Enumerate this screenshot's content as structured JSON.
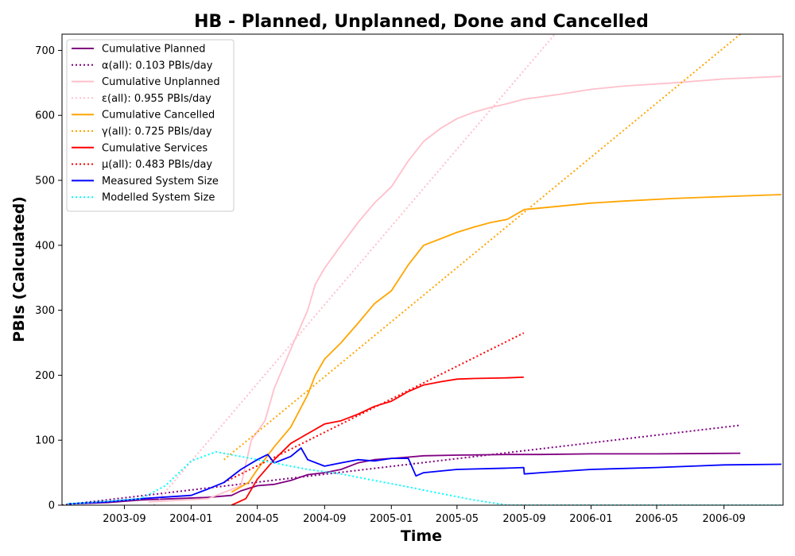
{
  "chart_data": {
    "type": "line",
    "title": "HB - Planned, Unplanned, Done  and Cancelled",
    "xlabel": "Time",
    "ylabel": "PBIs (Calculated)",
    "xlim": [
      "2003-05-10",
      "2006-12-18"
    ],
    "ylim": [
      0,
      725
    ],
    "x_ticks": [
      "2003-09",
      "2004-01",
      "2004-05",
      "2004-09",
      "2005-01",
      "2005-05",
      "2005-09",
      "2006-01",
      "2006-05",
      "2006-09"
    ],
    "y_ticks": [
      0,
      100,
      200,
      300,
      400,
      500,
      600,
      700
    ],
    "grid": false,
    "legend_position": "top-left",
    "series": [
      {
        "name": "Cumulative Planned",
        "color": "#800080",
        "style": "solid",
        "points": [
          [
            "2003-05-20",
            2
          ],
          [
            "2003-08-01",
            4
          ],
          [
            "2003-10-01",
            8
          ],
          [
            "2003-12-01",
            10
          ],
          [
            "2004-02-01",
            12
          ],
          [
            "2004-03-15",
            15
          ],
          [
            "2004-04-01",
            22
          ],
          [
            "2004-05-01",
            30
          ],
          [
            "2004-06-01",
            32
          ],
          [
            "2004-07-01",
            38
          ],
          [
            "2004-08-01",
            47
          ],
          [
            "2004-09-01",
            50
          ],
          [
            "2004-10-01",
            55
          ],
          [
            "2004-11-01",
            65
          ],
          [
            "2004-12-01",
            70
          ],
          [
            "2005-01-01",
            72
          ],
          [
            "2005-02-01",
            74
          ],
          [
            "2005-03-01",
            76
          ],
          [
            "2005-05-01",
            77
          ],
          [
            "2005-08-01",
            78
          ],
          [
            "2005-10-01",
            78
          ],
          [
            "2006-01-01",
            79
          ],
          [
            "2006-05-01",
            79
          ],
          [
            "2006-10-01",
            80
          ]
        ]
      },
      {
        "name": "α(all): 0.103 PBIs/day",
        "color": "#800080",
        "style": "dotted",
        "points": [
          [
            "2003-05-10",
            0
          ],
          [
            "2006-10-01",
            123
          ]
        ]
      },
      {
        "name": "Cumulative Unplanned",
        "color": "#ffc0cb",
        "style": "solid",
        "points": [
          [
            "2003-10-15",
            5
          ],
          [
            "2004-02-01",
            10
          ],
          [
            "2004-04-01",
            30
          ],
          [
            "2004-04-20",
            100
          ],
          [
            "2004-05-15",
            130
          ],
          [
            "2004-06-01",
            180
          ],
          [
            "2004-07-01",
            240
          ],
          [
            "2004-08-01",
            300
          ],
          [
            "2004-08-15",
            340
          ],
          [
            "2004-09-01",
            365
          ],
          [
            "2004-10-01",
            400
          ],
          [
            "2004-11-01",
            435
          ],
          [
            "2004-12-01",
            465
          ],
          [
            "2005-01-01",
            490
          ],
          [
            "2005-02-01",
            530
          ],
          [
            "2005-03-01",
            560
          ],
          [
            "2005-04-01",
            580
          ],
          [
            "2005-05-01",
            595
          ],
          [
            "2005-06-01",
            605
          ],
          [
            "2005-07-01",
            612
          ],
          [
            "2005-08-01",
            618
          ],
          [
            "2005-09-01",
            625
          ],
          [
            "2005-11-01",
            632
          ],
          [
            "2006-01-01",
            640
          ],
          [
            "2006-03-01",
            645
          ],
          [
            "2006-06-01",
            650
          ],
          [
            "2006-09-01",
            656
          ],
          [
            "2006-12-15",
            660
          ]
        ]
      },
      {
        "name": "ε(all): 0.955 PBIs/day",
        "color": "#ffc0cb",
        "style": "dotted",
        "points": [
          [
            "2003-10-25",
            0
          ],
          [
            "2005-10-27",
            725
          ]
        ]
      },
      {
        "name": "Cumulative Cancelled",
        "color": "#ffa500",
        "style": "solid",
        "points": [
          [
            "2004-03-15",
            20
          ],
          [
            "2004-04-15",
            35
          ],
          [
            "2004-05-01",
            55
          ],
          [
            "2004-06-01",
            90
          ],
          [
            "2004-07-01",
            120
          ],
          [
            "2004-08-01",
            170
          ],
          [
            "2004-08-15",
            200
          ],
          [
            "2004-09-01",
            225
          ],
          [
            "2004-10-01",
            250
          ],
          [
            "2004-11-01",
            280
          ],
          [
            "2004-12-01",
            310
          ],
          [
            "2005-01-01",
            330
          ],
          [
            "2005-02-01",
            370
          ],
          [
            "2005-03-01",
            400
          ],
          [
            "2005-04-01",
            410
          ],
          [
            "2005-05-01",
            420
          ],
          [
            "2005-06-01",
            428
          ],
          [
            "2005-07-01",
            435
          ],
          [
            "2005-08-01",
            440
          ],
          [
            "2005-09-01",
            455
          ],
          [
            "2005-11-01",
            460
          ],
          [
            "2006-01-01",
            465
          ],
          [
            "2006-03-01",
            468
          ],
          [
            "2006-06-01",
            472
          ],
          [
            "2006-09-01",
            475
          ],
          [
            "2006-12-15",
            478
          ]
        ]
      },
      {
        "name": "γ(all): 0.725 PBIs/day",
        "color": "#ffa500",
        "style": "dotted",
        "points": [
          [
            "2004-03-01",
            70
          ],
          [
            "2006-10-01",
            725
          ]
        ]
      },
      {
        "name": "Cumulative Services",
        "color": "#ff0000",
        "style": "solid",
        "points": [
          [
            "2004-03-15",
            0
          ],
          [
            "2004-04-10",
            10
          ],
          [
            "2004-05-01",
            40
          ],
          [
            "2004-06-01",
            70
          ],
          [
            "2004-07-01",
            95
          ],
          [
            "2004-08-01",
            110
          ],
          [
            "2004-09-01",
            125
          ],
          [
            "2004-10-01",
            130
          ],
          [
            "2004-11-01",
            140
          ],
          [
            "2004-12-01",
            152
          ],
          [
            "2005-01-01",
            160
          ],
          [
            "2005-02-01",
            175
          ],
          [
            "2005-03-01",
            185
          ],
          [
            "2005-04-01",
            190
          ],
          [
            "2005-05-01",
            194
          ],
          [
            "2005-06-01",
            195
          ],
          [
            "2005-08-01",
            196
          ],
          [
            "2005-08-31",
            197
          ]
        ]
      },
      {
        "name": "μ(all): 0.483 PBIs/day",
        "color": "#ff0000",
        "style": "dotted",
        "points": [
          [
            "2004-03-01",
            35
          ],
          [
            "2005-08-31",
            265
          ]
        ]
      },
      {
        "name": "Measured System Size",
        "color": "#0000ff",
        "style": "solid",
        "points": [
          [
            "2003-05-20",
            2
          ],
          [
            "2003-08-01",
            5
          ],
          [
            "2003-10-01",
            10
          ],
          [
            "2004-01-01",
            15
          ],
          [
            "2004-02-01",
            25
          ],
          [
            "2004-03-01",
            35
          ],
          [
            "2004-04-01",
            55
          ],
          [
            "2004-05-01",
            70
          ],
          [
            "2004-05-20",
            78
          ],
          [
            "2004-06-01",
            65
          ],
          [
            "2004-07-01",
            75
          ],
          [
            "2004-07-20",
            88
          ],
          [
            "2004-08-01",
            70
          ],
          [
            "2004-09-01",
            60
          ],
          [
            "2004-10-01",
            65
          ],
          [
            "2004-11-01",
            70
          ],
          [
            "2004-12-01",
            68
          ],
          [
            "2005-01-01",
            72
          ],
          [
            "2005-02-01",
            72
          ],
          [
            "2005-02-15",
            45
          ],
          [
            "2005-03-01",
            50
          ],
          [
            "2005-05-01",
            55
          ],
          [
            "2005-08-01",
            57
          ],
          [
            "2005-08-31",
            58
          ],
          [
            "2005-09-01",
            48
          ],
          [
            "2005-10-01",
            50
          ],
          [
            "2006-01-01",
            55
          ],
          [
            "2006-05-01",
            58
          ],
          [
            "2006-09-01",
            62
          ],
          [
            "2006-12-15",
            63
          ]
        ]
      },
      {
        "name": "Modelled System Size",
        "color": "#00ffff",
        "style": "dotted",
        "points": [
          [
            "2003-05-20",
            2
          ],
          [
            "2003-10-01",
            10
          ],
          [
            "2003-11-15",
            30
          ],
          [
            "2004-01-01",
            68
          ],
          [
            "2004-02-15",
            82
          ],
          [
            "2004-04-01",
            75
          ],
          [
            "2004-06-01",
            65
          ],
          [
            "2004-08-01",
            55
          ],
          [
            "2004-10-01",
            48
          ],
          [
            "2004-12-01",
            38
          ],
          [
            "2005-02-01",
            28
          ],
          [
            "2005-04-01",
            18
          ],
          [
            "2005-06-01",
            8
          ],
          [
            "2005-08-01",
            0
          ],
          [
            "2006-12-15",
            0
          ]
        ]
      }
    ]
  }
}
